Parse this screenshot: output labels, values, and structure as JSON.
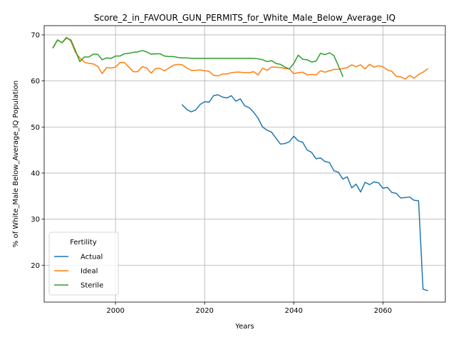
{
  "chart_data": {
    "type": "line",
    "title": "Score_2_in_FAVOUR_GUN_PERMITS_for_White_Male_Below_Average_IQ",
    "xlabel": "Years",
    "ylabel": "% of White_Male Below_Average_IQ Population",
    "xlim": [
      1984,
      2074
    ],
    "ylim": [
      12,
      72
    ],
    "xticks": [
      2000,
      2020,
      2040,
      2060
    ],
    "yticks": [
      20,
      30,
      40,
      50,
      60,
      70
    ],
    "grid": true,
    "legend": {
      "title": "Fertility",
      "position": "lower-left"
    },
    "series": [
      {
        "name": "Actual",
        "color": "#1f77b4",
        "x": [
          2015,
          2016,
          2017,
          2018,
          2019,
          2020,
          2021,
          2022,
          2023,
          2024,
          2025,
          2026,
          2027,
          2028,
          2029,
          2030,
          2031,
          2032,
          2033,
          2034,
          2035,
          2036,
          2037,
          2038,
          2039,
          2040,
          2041,
          2042,
          2043,
          2044,
          2045,
          2046,
          2047,
          2048,
          2049,
          2050,
          2051,
          2052,
          2053,
          2054,
          2055,
          2056,
          2057,
          2058,
          2059,
          2060,
          2061,
          2062,
          2063,
          2064,
          2065,
          2066,
          2067,
          2068,
          2069,
          2070
        ],
        "values": [
          54.8,
          53.8,
          53.3,
          53.7,
          54.9,
          55.5,
          55.4,
          56.8,
          57.0,
          56.5,
          56.3,
          56.8,
          55.6,
          56.1,
          54.6,
          54.2,
          53.2,
          51.9,
          50.0,
          49.3,
          48.9,
          47.6,
          46.3,
          46.4,
          46.8,
          48.0,
          47.0,
          46.7,
          45.0,
          44.5,
          43.1,
          43.3,
          42.5,
          42.3,
          40.5,
          40.2,
          38.7,
          39.2,
          36.8,
          37.6,
          35.9,
          38.0,
          37.5,
          38.1,
          37.9,
          36.7,
          36.9,
          35.8,
          35.6,
          34.6,
          34.7,
          34.8,
          34.1,
          34.0,
          14.8,
          14.5
        ]
      },
      {
        "name": "Ideal",
        "color": "#ff7f0e",
        "x": [
          1986,
          1987,
          1988,
          1989,
          1990,
          1991,
          1992,
          1993,
          1994,
          1995,
          1996,
          1997,
          1998,
          1999,
          2000,
          2001,
          2002,
          2003,
          2004,
          2005,
          2006,
          2007,
          2008,
          2009,
          2010,
          2011,
          2012,
          2013,
          2014,
          2015,
          2016,
          2017,
          2018,
          2019,
          2020,
          2021,
          2022,
          2023,
          2024,
          2025,
          2026,
          2027,
          2028,
          2029,
          2030,
          2031,
          2032,
          2033,
          2034,
          2035,
          2036,
          2037,
          2038,
          2039,
          2040,
          2041,
          2042,
          2043,
          2044,
          2045,
          2046,
          2047,
          2048,
          2049,
          2050,
          2051,
          2052,
          2053,
          2054,
          2055,
          2056,
          2057,
          2058,
          2059,
          2060,
          2061,
          2062,
          2063,
          2064,
          2065,
          2066,
          2067,
          2068,
          2069,
          2070
        ],
        "values": [
          67.3,
          68.9,
          68.3,
          69.5,
          68.6,
          66.2,
          65.0,
          64.1,
          63.8,
          63.7,
          63.2,
          61.6,
          62.9,
          62.8,
          63.0,
          64.0,
          64.0,
          63.0,
          62.0,
          62.0,
          63.1,
          62.8,
          61.7,
          62.7,
          62.7,
          62.2,
          62.8,
          63.4,
          63.6,
          63.5,
          62.8,
          62.3,
          62.3,
          62.4,
          62.2,
          62.1,
          61.2,
          61.1,
          61.5,
          61.5,
          61.8,
          61.9,
          61.9,
          61.8,
          61.8,
          62.0,
          61.3,
          62.8,
          62.3,
          63.0,
          63.0,
          62.9,
          62.7,
          62.6,
          61.6,
          61.8,
          61.9,
          61.3,
          61.4,
          61.3,
          62.2,
          61.9,
          62.2,
          62.5,
          62.5,
          62.7,
          62.9,
          63.5,
          63.1,
          63.5,
          62.6,
          63.6,
          63.0,
          63.3,
          63.1,
          62.4,
          62.1,
          61.0,
          60.9,
          60.4,
          61.2,
          60.6,
          61.4,
          61.9,
          62.6
        ]
      },
      {
        "name": "Sterile",
        "color": "#2ca02c",
        "x": [
          1986,
          1987,
          1988,
          1989,
          1990,
          1991,
          1992,
          1993,
          1994,
          1995,
          1996,
          1997,
          1998,
          1999,
          2000,
          2001,
          2002,
          2003,
          2004,
          2005,
          2006,
          2007,
          2008,
          2009,
          2010,
          2011,
          2012,
          2013,
          2014,
          2015,
          2016,
          2017,
          2018,
          2019,
          2020,
          2021,
          2022,
          2023,
          2024,
          2025,
          2026,
          2027,
          2028,
          2029,
          2030,
          2031,
          2032,
          2033,
          2034,
          2035,
          2036,
          2037,
          2038,
          2039,
          2040,
          2041,
          2042,
          2043,
          2044,
          2045,
          2046,
          2047,
          2048,
          2049,
          2050,
          2051
        ],
        "values": [
          67.2,
          68.9,
          68.3,
          69.3,
          68.9,
          66.6,
          64.2,
          65.2,
          65.2,
          65.8,
          65.8,
          64.6,
          65.0,
          64.9,
          65.4,
          65.4,
          65.9,
          66.0,
          66.2,
          66.3,
          66.6,
          66.3,
          65.8,
          65.9,
          65.9,
          65.4,
          65.3,
          65.3,
          65.1,
          65.0,
          65.0,
          64.9,
          64.9,
          64.9,
          64.9,
          64.9,
          64.9,
          64.9,
          64.9,
          64.9,
          64.9,
          64.9,
          64.9,
          64.9,
          64.9,
          64.9,
          64.8,
          64.6,
          64.2,
          64.4,
          63.8,
          63.6,
          63.0,
          62.6,
          63.8,
          65.6,
          64.7,
          64.6,
          64.1,
          64.3,
          66.0,
          65.7,
          66.1,
          65.5,
          63.3,
          61.0
        ]
      }
    ]
  }
}
